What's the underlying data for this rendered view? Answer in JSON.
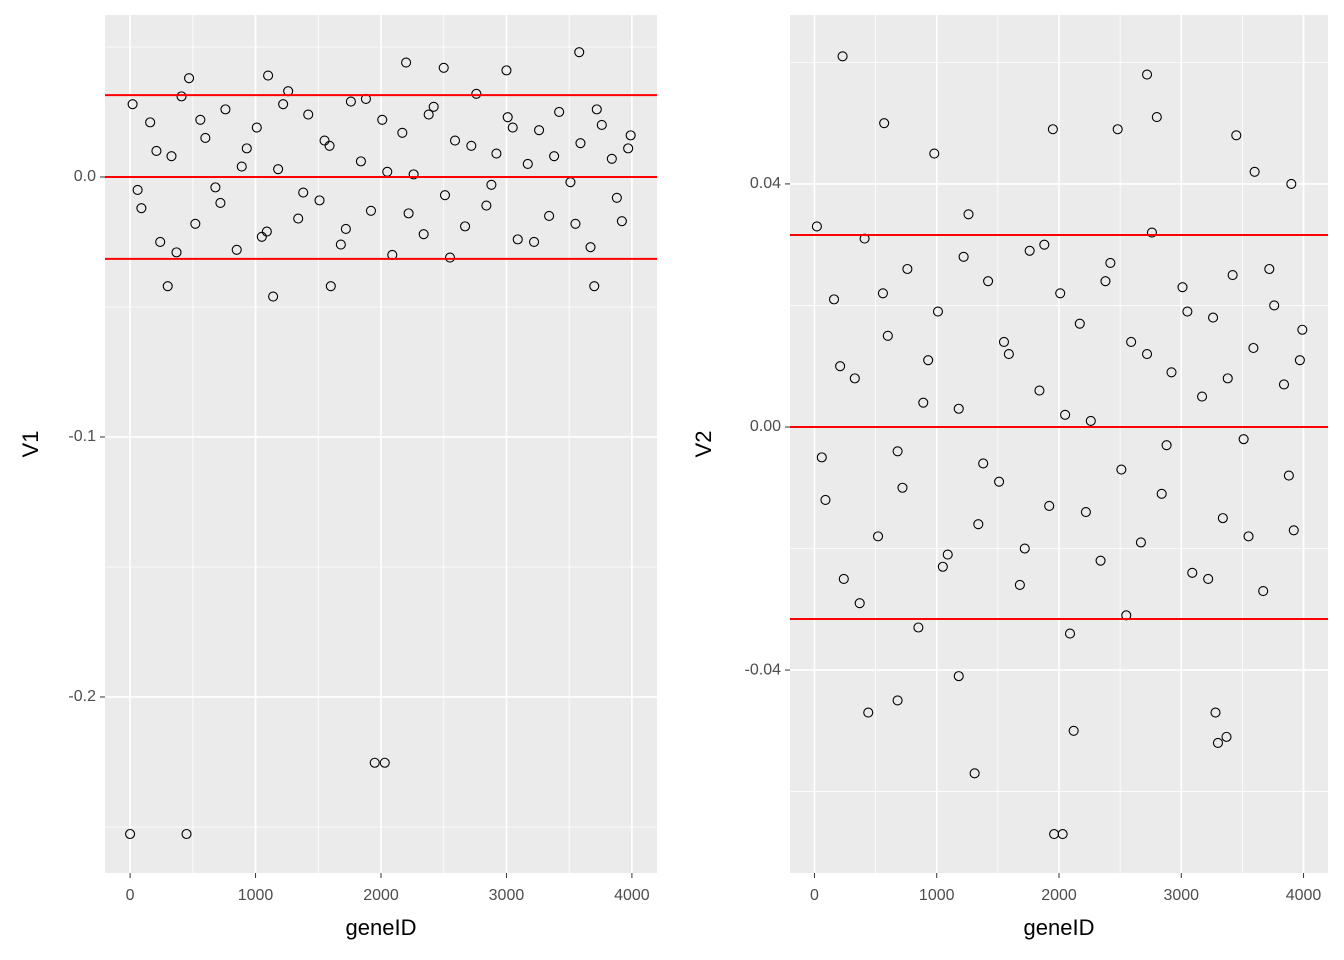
{
  "chart_data": [
    {
      "type": "scatter",
      "x_label": "geneID",
      "y_label": "V1",
      "xlim": [
        -200,
        4200
      ],
      "ylim": [
        -0.2677,
        0.0623
      ],
      "xticks": [
        0,
        1000,
        2000,
        3000,
        4000
      ],
      "yticks": [
        {
          "value": 0,
          "label": "0.0"
        },
        -0.1,
        -0.2
      ],
      "grid": true,
      "color": "#000000",
      "hlines": [
        0.0315,
        0,
        -0.0315
      ],
      "hline_color": "#ff0000",
      "x": [
        0,
        450,
        1950,
        2030,
        3580,
        2200,
        2500,
        3000,
        1140,
        1600,
        300,
        470,
        1100,
        3700,
        20,
        90,
        160,
        240,
        330,
        410,
        520,
        600,
        680,
        760,
        850,
        930,
        1010,
        1090,
        1180,
        1260,
        1340,
        1420,
        1510,
        1590,
        1680,
        1760,
        1840,
        1920,
        2010,
        2090,
        2170,
        2260,
        2340,
        2420,
        2510,
        2590,
        2670,
        2760,
        2840,
        2920,
        3010,
        3090,
        3170,
        3260,
        3340,
        3420,
        3510,
        3590,
        3670,
        3760,
        3840,
        3920,
        3990,
        60,
        210,
        370,
        560,
        720,
        890,
        1050,
        1220,
        1380,
        1550,
        1720,
        1880,
        2050,
        2220,
        2380,
        2550,
        2720,
        2880,
        3050,
        3220,
        3380,
        3550,
        3720,
        3880,
        3970
      ],
      "values": [
        -0.2527,
        -0.2527,
        -0.2253,
        -0.2253,
        0.048,
        0.044,
        0.042,
        0.041,
        -0.046,
        -0.042,
        -0.042,
        0.038,
        0.039,
        -0.042,
        0.028,
        -0.012,
        0.021,
        -0.025,
        0.008,
        0.031,
        -0.018,
        0.015,
        -0.004,
        0.026,
        -0.028,
        0.011,
        0.019,
        -0.021,
        0.003,
        0.033,
        -0.016,
        0.024,
        -0.009,
        0.012,
        -0.026,
        0.029,
        0.006,
        -0.013,
        0.022,
        -0.03,
        0.017,
        0.001,
        -0.022,
        0.027,
        -0.007,
        0.014,
        -0.019,
        0.032,
        -0.011,
        0.009,
        0.023,
        -0.024,
        0.005,
        0.018,
        -0.015,
        0.025,
        -0.002,
        0.013,
        -0.027,
        0.02,
        0.007,
        -0.017,
        0.016,
        -0.005,
        0.01,
        -0.029,
        0.022,
        -0.01,
        0.004,
        -0.023,
        0.028,
        -0.006,
        0.014,
        -0.02,
        0.03,
        0.002,
        -0.014,
        0.024,
        -0.031,
        0.012,
        -0.003,
        0.019,
        -0.025,
        0.008,
        -0.018,
        0.026,
        -0.008,
        0.011
      ]
    },
    {
      "type": "scatter",
      "x_label": "geneID",
      "y_label": "V2",
      "xlim": [
        -200,
        4200
      ],
      "ylim": [
        -0.0734,
        0.0678
      ],
      "xticks": [
        0,
        1000,
        2000,
        3000,
        4000
      ],
      "yticks": [
        0.04,
        {
          "value": 0,
          "label": "0.00"
        },
        -0.04
      ],
      "grid": true,
      "color": "#000000",
      "hlines": [
        0.0316,
        0,
        -0.0316
      ],
      "hline_color": "#ff0000",
      "x": [
        230,
        2720,
        1960,
        2030,
        1310,
        570,
        1950,
        2800,
        3300,
        3370,
        2120,
        440,
        680,
        3280,
        980,
        1180,
        3450,
        3900,
        3600,
        2480,
        20,
        90,
        160,
        240,
        330,
        410,
        520,
        600,
        680,
        760,
        850,
        930,
        1010,
        1090,
        1180,
        1260,
        1340,
        1420,
        1510,
        1590,
        1680,
        1760,
        1840,
        1920,
        2010,
        2090,
        2170,
        2260,
        2340,
        2420,
        2510,
        2590,
        2670,
        2760,
        2840,
        2920,
        3010,
        3090,
        3170,
        3260,
        3340,
        3420,
        3510,
        3590,
        3670,
        3760,
        3840,
        3920,
        3990,
        60,
        210,
        370,
        560,
        720,
        890,
        1050,
        1220,
        1380,
        1550,
        1720,
        1880,
        2050,
        2220,
        2380,
        2550,
        2720,
        2880,
        3050,
        3220,
        3380,
        3550,
        3720,
        3880,
        3970
      ],
      "values": [
        0.061,
        0.058,
        -0.067,
        -0.067,
        -0.057,
        0.05,
        0.049,
        0.051,
        -0.052,
        -0.051,
        -0.05,
        -0.047,
        -0.045,
        -0.047,
        0.045,
        -0.041,
        0.048,
        0.04,
        0.042,
        0.049,
        0.033,
        -0.012,
        0.021,
        -0.025,
        0.008,
        0.031,
        -0.018,
        0.015,
        -0.004,
        0.026,
        -0.033,
        0.011,
        0.019,
        -0.021,
        0.003,
        0.035,
        -0.016,
        0.024,
        -0.009,
        0.012,
        -0.026,
        0.029,
        0.006,
        -0.013,
        0.022,
        -0.034,
        0.017,
        0.001,
        -0.022,
        0.027,
        -0.007,
        0.014,
        -0.019,
        0.032,
        -0.011,
        0.009,
        0.023,
        -0.024,
        0.005,
        0.018,
        -0.015,
        0.025,
        -0.002,
        0.013,
        -0.027,
        0.02,
        0.007,
        -0.017,
        0.016,
        -0.005,
        0.01,
        -0.029,
        0.022,
        -0.01,
        0.004,
        -0.023,
        0.028,
        -0.006,
        0.014,
        -0.02,
        0.03,
        0.002,
        -0.014,
        0.024,
        -0.031,
        0.012,
        -0.003,
        0.019,
        -0.025,
        0.008,
        -0.018,
        0.026,
        -0.008,
        0.011
      ]
    }
  ]
}
